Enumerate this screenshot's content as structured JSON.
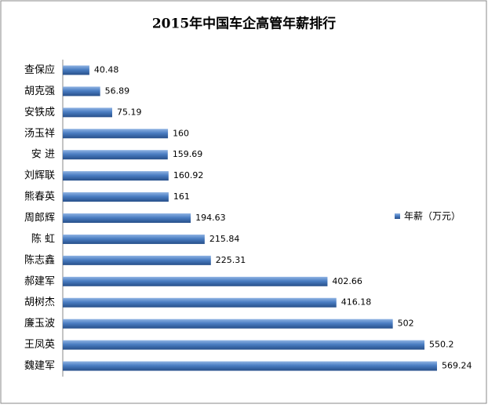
{
  "chart_data": {
    "type": "bar",
    "orientation": "horizontal",
    "title": "2015年中国车企高管年薪排行",
    "categories": [
      "查保应",
      "胡克强",
      "安铁成",
      "汤玉祥",
      "安 进",
      "刘辉联",
      "熊春英",
      "周郎辉",
      "陈 虹",
      "陈志鑫",
      "郝建军",
      "胡树杰",
      "廉玉波",
      "王凤英",
      "魏建军"
    ],
    "series": [
      {
        "name": "年薪（万元）",
        "color": "#3f6fb0",
        "values": [
          40.48,
          56.89,
          75.19,
          160,
          159.69,
          160.92,
          161,
          194.63,
          215.84,
          225.31,
          402.66,
          416.18,
          502,
          550.2,
          569.24
        ]
      }
    ],
    "legend": "right"
  }
}
